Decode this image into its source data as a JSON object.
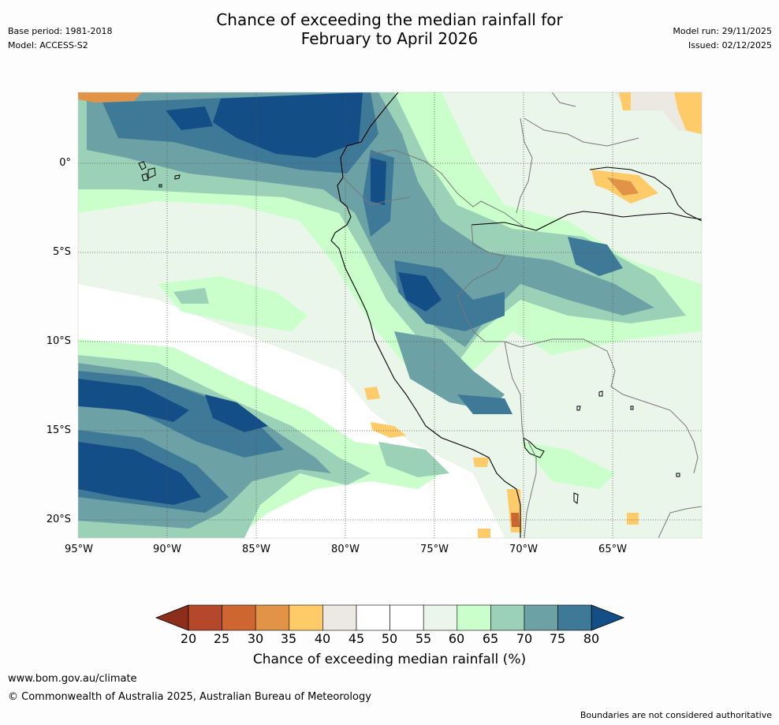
{
  "title": {
    "line1": "Chance of exceeding the median rainfall for",
    "line2": "February to April 2026"
  },
  "meta_left": {
    "base_period": "Base period: 1981-2018",
    "model": "Model: ACCESS-S2"
  },
  "meta_right": {
    "model_run": "Model run: 29/11/2025",
    "issued": "Issued: 02/12/2025"
  },
  "map": {
    "lat_labels": [
      "0°",
      "5°S",
      "10°S",
      "15°S",
      "20°S"
    ],
    "lon_labels": [
      "95°W",
      "90°W",
      "85°W",
      "80°W",
      "75°W",
      "70°W",
      "65°W"
    ]
  },
  "colorbar": {
    "ticks": [
      "20",
      "25",
      "30",
      "35",
      "40",
      "45",
      "50",
      "55",
      "60",
      "65",
      "70",
      "75",
      "80"
    ],
    "colors": [
      "#8b2f1c",
      "#b5482a",
      "#cd6631",
      "#e19447",
      "#fecb68",
      "#ece9e3",
      "#ffffff",
      "#ffffff",
      "#eaf6ea",
      "#caffcb",
      "#9bd1b7",
      "#6ca2a5",
      "#3f7998",
      "#134e87"
    ],
    "label": "Chance of exceeding median rainfall (%)"
  },
  "footer": {
    "url": "www.bom.gov.au/climate",
    "copyright": "© Commonwealth of Australia 2025, Australian Bureau of Meteorology",
    "note": "Boundaries are not considered authoritative"
  }
}
